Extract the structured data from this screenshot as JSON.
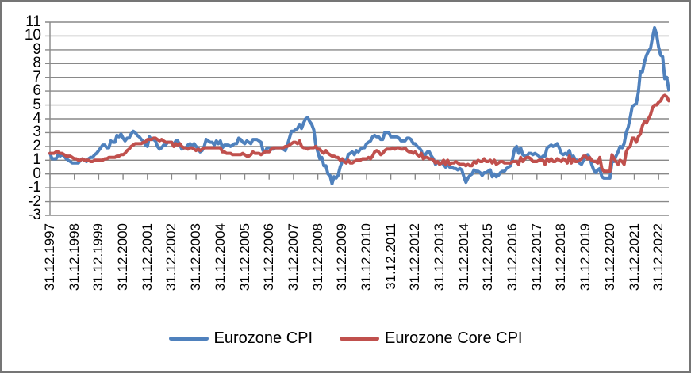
{
  "chart_data": {
    "type": "line",
    "title": "",
    "grid": true,
    "grid_color": "#898989",
    "legend_position": "bottom",
    "y_axis": {
      "min": -3,
      "max": 11,
      "step": 1,
      "ticks": [
        11,
        10,
        9,
        8,
        7,
        6,
        5,
        4,
        3,
        2,
        1,
        0,
        -1,
        -2,
        -3
      ]
    },
    "x_axis": {
      "first_point": "31.12.1997",
      "last_point": "31.05.2023",
      "points_per_tick": 12,
      "tick_labels": [
        "31.12.1997",
        "31.12.1998",
        "31.12.1999",
        "31.12.2000",
        "31.12.2001",
        "31.12.2002",
        "31.12.2003",
        "31.12.2004",
        "31.12.2005",
        "31.12.2006",
        "31.12.2007",
        "31.12.2008",
        "31.12.2009",
        "31.12.2010",
        "31.12.2011",
        "31.12.2012",
        "31.12.2013",
        "31.12.2014",
        "31.12.2015",
        "31.12.2016",
        "31.12.2017",
        "31.12.2018",
        "31.12.2019",
        "31.12.2020",
        "31.12.2021",
        "31.12.2022"
      ]
    },
    "series": [
      {
        "name": "Eurozone CPI",
        "color": "#4F81BD",
        "values": [
          1.5,
          1.1,
          1.1,
          1.1,
          1.4,
          1.3,
          1.4,
          1.3,
          1.1,
          1.0,
          0.9,
          0.8,
          0.8,
          0.8,
          0.8,
          1.0,
          1.1,
          1.0,
          0.9,
          1.1,
          1.2,
          1.2,
          1.4,
          1.5,
          1.7,
          1.9,
          2.1,
          2.1,
          1.9,
          1.9,
          2.4,
          2.3,
          2.3,
          2.8,
          2.7,
          2.9,
          2.6,
          2.4,
          2.6,
          2.6,
          2.9,
          3.1,
          3.0,
          2.8,
          2.7,
          2.5,
          2.4,
          2.1,
          2.0,
          2.7,
          2.5,
          2.5,
          2.4,
          2.0,
          1.8,
          1.9,
          2.1,
          2.1,
          2.3,
          2.3,
          2.3,
          2.1,
          2.4,
          2.4,
          2.1,
          1.8,
          1.9,
          1.9,
          2.1,
          2.2,
          2.0,
          2.2,
          2.0,
          1.9,
          1.6,
          1.7,
          2.0,
          2.5,
          2.4,
          2.3,
          2.3,
          2.1,
          2.4,
          2.2,
          2.4,
          1.9,
          2.1,
          2.1,
          2.1,
          2.0,
          2.1,
          2.2,
          2.2,
          2.6,
          2.5,
          2.3,
          2.2,
          2.4,
          2.3,
          2.2,
          2.5,
          2.5,
          2.5,
          2.4,
          2.3,
          1.7,
          1.6,
          1.9,
          1.9,
          1.8,
          1.8,
          1.9,
          1.9,
          1.9,
          1.9,
          1.8,
          1.7,
          2.1,
          2.6,
          3.1,
          3.1,
          3.2,
          3.3,
          3.6,
          3.3,
          3.7,
          4.0,
          4.1,
          3.8,
          3.6,
          3.2,
          2.1,
          1.6,
          1.1,
          1.2,
          0.6,
          0.6,
          0.0,
          -0.1,
          -0.7,
          -0.2,
          -0.3,
          -0.1,
          0.5,
          0.9,
          1.0,
          0.9,
          1.4,
          1.5,
          1.6,
          1.4,
          1.7,
          1.6,
          1.8,
          1.9,
          1.9,
          2.2,
          2.3,
          2.4,
          2.7,
          2.8,
          2.7,
          2.7,
          2.5,
          2.5,
          3.0,
          3.0,
          3.0,
          2.7,
          2.7,
          2.7,
          2.7,
          2.6,
          2.4,
          2.4,
          2.4,
          2.6,
          2.6,
          2.5,
          2.2,
          2.2,
          2.0,
          1.9,
          1.7,
          1.2,
          1.4,
          1.6,
          1.6,
          1.3,
          1.1,
          0.7,
          0.9,
          0.8,
          0.8,
          0.7,
          0.5,
          0.7,
          0.5,
          0.5,
          0.4,
          0.4,
          0.3,
          0.4,
          0.3,
          -0.2,
          -0.6,
          -0.3,
          -0.1,
          0.0,
          0.3,
          0.2,
          0.2,
          0.1,
          -0.1,
          0.1,
          0.1,
          0.2,
          0.3,
          -0.2,
          0.0,
          -0.2,
          -0.1,
          0.1,
          0.2,
          0.2,
          0.4,
          0.5,
          0.6,
          1.1,
          1.8,
          2.0,
          1.5,
          1.9,
          1.4,
          1.3,
          1.3,
          1.5,
          1.5,
          1.4,
          1.5,
          1.4,
          1.3,
          1.1,
          1.3,
          1.3,
          1.9,
          2.0,
          2.1,
          2.0,
          2.1,
          2.2,
          1.9,
          1.5,
          1.4,
          1.5,
          1.4,
          1.7,
          1.2,
          1.3,
          1.0,
          1.0,
          0.8,
          0.7,
          1.0,
          1.3,
          1.4,
          1.2,
          0.7,
          0.3,
          0.1,
          0.3,
          0.4,
          -0.2,
          -0.3,
          -0.3,
          -0.3,
          -0.3,
          0.9,
          0.9,
          1.3,
          1.6,
          2.0,
          1.9,
          2.2,
          3.0,
          3.4,
          4.1,
          4.9,
          5.0,
          5.1,
          5.9,
          7.4,
          7.4,
          8.1,
          8.6,
          8.9,
          9.1,
          9.9,
          10.6,
          10.1,
          9.2,
          8.6,
          8.5,
          6.9,
          7.0,
          6.1
        ]
      },
      {
        "name": "Eurozone Core CPI",
        "color": "#C0504D",
        "values": [
          1.5,
          1.5,
          1.5,
          1.6,
          1.6,
          1.5,
          1.5,
          1.4,
          1.3,
          1.3,
          1.3,
          1.2,
          1.1,
          1.1,
          1.0,
          1.0,
          1.1,
          1.0,
          1.0,
          1.0,
          0.9,
          0.9,
          1.0,
          1.0,
          1.0,
          1.0,
          1.0,
          1.1,
          1.1,
          1.2,
          1.2,
          1.2,
          1.2,
          1.3,
          1.3,
          1.4,
          1.4,
          1.5,
          1.7,
          1.8,
          2.0,
          2.1,
          2.2,
          2.2,
          2.2,
          2.2,
          2.3,
          2.3,
          2.5,
          2.5,
          2.5,
          2.6,
          2.6,
          2.5,
          2.4,
          2.5,
          2.4,
          2.3,
          2.3,
          2.3,
          2.3,
          2.0,
          2.2,
          2.1,
          2.2,
          2.0,
          1.9,
          1.9,
          1.8,
          1.9,
          1.9,
          1.8,
          1.7,
          1.8,
          1.7,
          1.8,
          1.9,
          1.9,
          1.9,
          1.9,
          1.9,
          1.9,
          1.9,
          1.9,
          1.9,
          1.6,
          1.6,
          1.5,
          1.5,
          1.5,
          1.4,
          1.4,
          1.4,
          1.4,
          1.4,
          1.5,
          1.4,
          1.3,
          1.3,
          1.4,
          1.6,
          1.5,
          1.5,
          1.5,
          1.4,
          1.5,
          1.6,
          1.6,
          1.6,
          1.8,
          1.9,
          1.9,
          1.9,
          1.9,
          1.9,
          1.9,
          2.0,
          2.0,
          2.1,
          2.2,
          2.3,
          2.3,
          2.2,
          2.4,
          2.0,
          1.9,
          1.9,
          1.8,
          1.9,
          1.9,
          1.9,
          2.0,
          1.8,
          1.8,
          1.6,
          1.5,
          1.7,
          1.5,
          1.4,
          1.3,
          1.3,
          1.2,
          1.2,
          1.0,
          1.1,
          0.9,
          0.8,
          1.0,
          0.8,
          0.8,
          0.9,
          1.0,
          1.0,
          1.0,
          1.1,
          1.1,
          1.1,
          1.2,
          1.1,
          1.3,
          1.6,
          1.7,
          1.6,
          1.4,
          1.5,
          1.7,
          1.8,
          1.8,
          1.8,
          1.9,
          1.8,
          1.9,
          1.9,
          1.8,
          1.8,
          1.9,
          1.7,
          1.6,
          1.6,
          1.5,
          1.6,
          1.4,
          1.3,
          1.5,
          1.1,
          1.2,
          1.2,
          1.1,
          1.1,
          1.0,
          0.8,
          0.9,
          0.7,
          0.8,
          1.0,
          0.7,
          1.0,
          0.7,
          0.8,
          0.8,
          0.9,
          0.8,
          0.7,
          0.7,
          0.7,
          0.6,
          0.7,
          0.6,
          0.6,
          0.9,
          0.8,
          1.0,
          0.9,
          0.9,
          1.1,
          0.9,
          0.9,
          1.0,
          0.8,
          1.0,
          0.7,
          0.8,
          0.9,
          0.9,
          0.8,
          0.8,
          0.8,
          0.8,
          0.9,
          0.9,
          0.9,
          0.7,
          1.2,
          0.9,
          1.1,
          1.2,
          1.2,
          1.1,
          0.9,
          0.9,
          0.9,
          1.0,
          1.0,
          1.0,
          0.7,
          1.1,
          0.9,
          1.1,
          0.9,
          0.9,
          1.1,
          1.0,
          0.9,
          1.1,
          1.0,
          0.8,
          1.3,
          0.8,
          1.1,
          0.9,
          0.9,
          1.0,
          1.1,
          1.3,
          1.3,
          1.1,
          1.2,
          1.0,
          0.9,
          0.9,
          0.8,
          1.2,
          0.4,
          0.2,
          0.2,
          0.2,
          0.2,
          1.4,
          1.1,
          0.9,
          0.7,
          1.0,
          0.9,
          0.7,
          1.6,
          1.9,
          2.0,
          2.6,
          2.6,
          2.3,
          2.7,
          2.9,
          3.5,
          3.8,
          3.7,
          4.0,
          4.3,
          4.8,
          5.0,
          5.0,
          5.2,
          5.3,
          5.6,
          5.7,
          5.6,
          5.3
        ]
      }
    ]
  }
}
